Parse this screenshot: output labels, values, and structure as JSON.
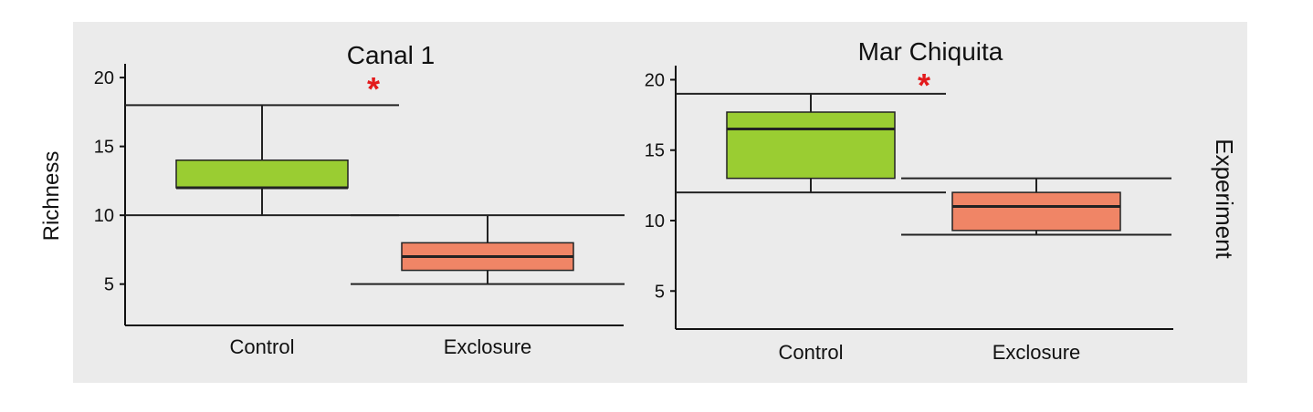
{
  "y_axis_label": "Richness",
  "strip_label": "Experiment",
  "significance_marker": "*",
  "colors": {
    "panel_bg": "#ebebeb",
    "control_fill": "#9acd32",
    "exclosure_fill": "#f08566",
    "asterisk": "#e31a1c",
    "line": "#222222"
  },
  "chart_data": [
    {
      "type": "box",
      "title": "Canal 1",
      "categories": [
        "Control",
        "Exclosure"
      ],
      "ylabel": "Richness",
      "yticks": [
        5,
        10,
        15,
        20
      ],
      "ylim": [
        2,
        21
      ],
      "significant": true,
      "boxes": [
        {
          "category": "Control",
          "whisker_low": 10,
          "q1": 12,
          "median": 12,
          "q3": 14,
          "whisker_high": 18
        },
        {
          "category": "Exclosure",
          "whisker_low": 5,
          "q1": 6,
          "median": 7,
          "q3": 8,
          "whisker_high": 10
        }
      ]
    },
    {
      "type": "box",
      "title": "Mar Chiquita",
      "categories": [
        "Control",
        "Exclosure"
      ],
      "ylabel": "",
      "yticks": [
        5,
        10,
        15,
        20
      ],
      "ylim": [
        2.3,
        21
      ],
      "significant": true,
      "boxes": [
        {
          "category": "Control",
          "whisker_low": 12,
          "q1": 13,
          "median": 16.5,
          "q3": 17.7,
          "whisker_high": 19
        },
        {
          "category": "Exclosure",
          "whisker_low": 9,
          "q1": 9.3,
          "median": 11,
          "q3": 12,
          "whisker_high": 13
        }
      ]
    }
  ]
}
